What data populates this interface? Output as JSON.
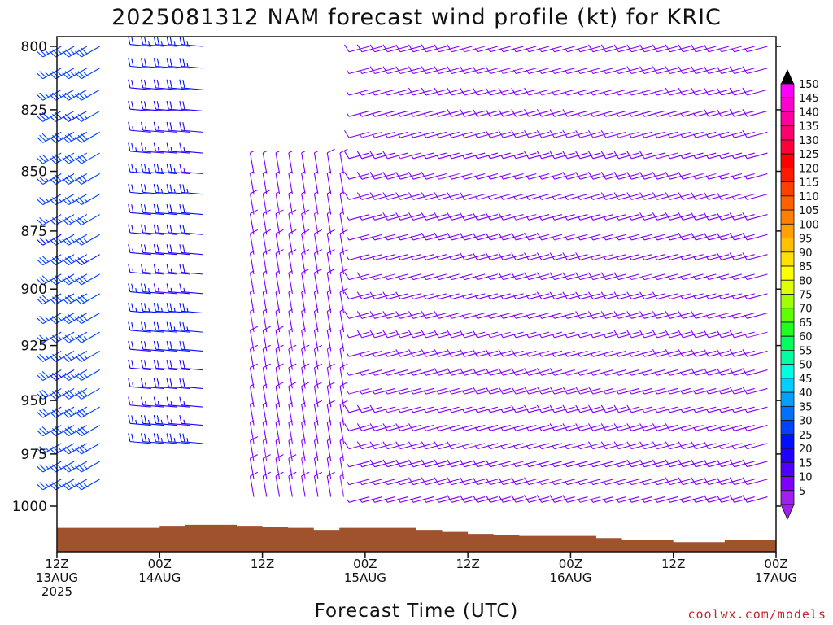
{
  "chart_data": {
    "type": "wind-barb-time-height",
    "title": "2025081312 NAM forecast wind profile (kt) for KRIC",
    "xlabel": "Forecast Time (UTC)",
    "credit": "coolwx.com/models",
    "units": "kt",
    "y_axis": {
      "quantity": "pressure",
      "units": "hPa",
      "ticks": [
        800,
        825,
        850,
        875,
        900,
        925,
        950,
        975,
        1000
      ],
      "range": [
        800,
        1012
      ]
    },
    "x_axis": {
      "range_hours": [
        0,
        84
      ],
      "ticks": [
        {
          "line1": "12Z",
          "line2": "13AUG",
          "line3": "2025"
        },
        {
          "line1": "00Z",
          "line2": "14AUG",
          "line3": ""
        },
        {
          "line1": "12Z",
          "line2": "",
          "line3": ""
        },
        {
          "line1": "00Z",
          "line2": "15AUG",
          "line3": ""
        },
        {
          "line1": "12Z",
          "line2": "",
          "line3": ""
        },
        {
          "line1": "00Z",
          "line2": "16AUG",
          "line3": ""
        },
        {
          "line1": "12Z",
          "line2": "",
          "line3": ""
        },
        {
          "line1": "00Z",
          "line2": "17AUG",
          "line3": ""
        }
      ]
    },
    "colorbar": {
      "labels": [
        150,
        145,
        140,
        135,
        130,
        125,
        120,
        115,
        110,
        105,
        100,
        95,
        90,
        85,
        80,
        75,
        70,
        65,
        60,
        55,
        50,
        45,
        40,
        35,
        30,
        25,
        20,
        15,
        10,
        5
      ],
      "colors": [
        "#ff00ff",
        "#ff00d0",
        "#ff00a0",
        "#ff0070",
        "#ff0038",
        "#ff0000",
        "#ff1a00",
        "#ff4000",
        "#ff6000",
        "#ff8000",
        "#ffa000",
        "#ffc000",
        "#ffe000",
        "#ffff00",
        "#e0ff00",
        "#a0ff00",
        "#60ff00",
        "#20ff20",
        "#00ff60",
        "#00ffa0",
        "#00ffe0",
        "#00d0ff",
        "#00a0ff",
        "#0070ff",
        "#0040ff",
        "#0010ff",
        "#2000ff",
        "#5000ff",
        "#8000ff",
        "#a020f0"
      ]
    },
    "surface_pressure": {
      "hours": [
        0,
        3,
        6,
        9,
        12,
        15,
        18,
        21,
        24,
        27,
        30,
        33,
        36,
        39,
        42,
        45,
        48,
        51,
        54,
        57,
        60,
        63,
        66,
        69,
        72,
        75,
        78,
        81,
        84
      ],
      "hPa": [
        1005,
        1005,
        1005,
        1005,
        1004,
        1003.5,
        1003.5,
        1004,
        1004.5,
        1005,
        1006,
        1005,
        1005,
        1005,
        1006,
        1007,
        1008,
        1008.5,
        1009,
        1009,
        1009,
        1010,
        1011,
        1011,
        1012,
        1012,
        1011,
        1011,
        1011
      ]
    },
    "wind_regimes": [
      {
        "hours": [
          0,
          6
        ],
        "levels_hPa": [
          800,
          990
        ],
        "direction_deg": 240,
        "speed_kt": [
          25,
          30
        ]
      },
      {
        "hours": [
          10,
          18
        ],
        "levels_hPa": [
          800,
          975
        ],
        "direction_deg": 275,
        "speed_kt": [
          15,
          25
        ]
      },
      {
        "hours": [
          22,
          34
        ],
        "levels_hPa": [
          850,
          1000
        ],
        "direction_deg": 350,
        "speed_kt": [
          5,
          10
        ]
      },
      {
        "hours": [
          36,
          84
        ],
        "levels_hPa": [
          800,
          1000
        ],
        "direction_deg": 255,
        "speed_kt": [
          5,
          10
        ]
      }
    ]
  }
}
